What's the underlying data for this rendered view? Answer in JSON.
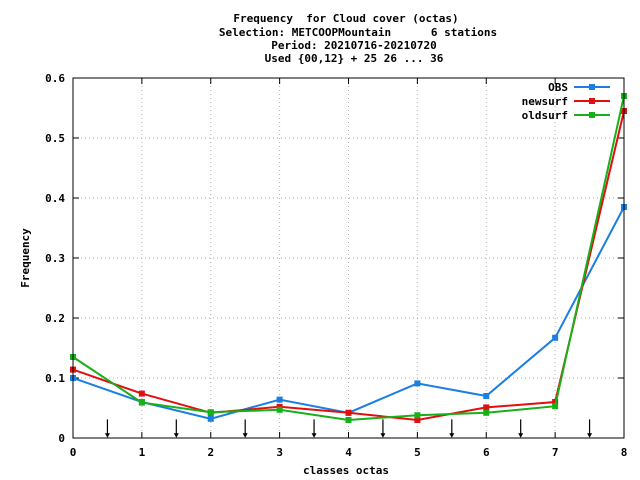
{
  "chart_data": {
    "type": "line",
    "title_lines": [
      "Frequency  for Cloud cover (octas)",
      "Selection: METCOOPMountain      6 stations",
      "Period: 20210716-20210720",
      "Used {00,12} + 25 26 ... 36"
    ],
    "xlabel": "classes octas",
    "ylabel": "Frequency",
    "xlim": [
      0,
      8
    ],
    "ylim": [
      0,
      0.6
    ],
    "x_ticks": [
      "0",
      "1",
      "2",
      "3",
      "4",
      "5",
      "6",
      "7",
      "8"
    ],
    "y_ticks": [
      "0",
      "0.1",
      "0.2",
      "0.3",
      "0.4",
      "0.5",
      "0.6"
    ],
    "grid": true,
    "legend_position": "top-right",
    "arrow_markers_x": [
      0.5,
      1.5,
      2.5,
      3.5,
      4.5,
      5.5,
      6.5,
      7.5
    ],
    "x": [
      0,
      1,
      2,
      3,
      4,
      5,
      6,
      7,
      8
    ],
    "series": [
      {
        "name": "OBS",
        "color": "#1a7fe0",
        "values": [
          0.1,
          0.06,
          0.032,
          0.064,
          0.042,
          0.091,
          0.07,
          0.167,
          0.385
        ]
      },
      {
        "name": "newsurf",
        "color": "#e01010",
        "values": [
          0.114,
          0.074,
          0.042,
          0.052,
          0.042,
          0.03,
          0.051,
          0.06,
          0.545
        ]
      },
      {
        "name": "oldsurf",
        "color": "#18b018",
        "values": [
          0.135,
          0.059,
          0.043,
          0.047,
          0.03,
          0.038,
          0.042,
          0.053,
          0.57
        ]
      }
    ]
  }
}
